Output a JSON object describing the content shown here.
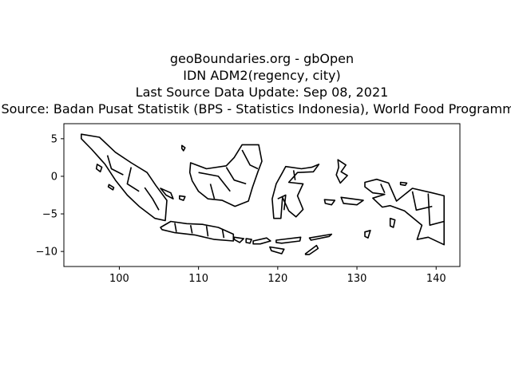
{
  "figure": {
    "title_lines": [
      "geoBoundaries.org - gbOpen",
      "IDN ADM2(regency, city)",
      "Last Source Data Update: Sep 08, 2021",
      "Source: Badan Pusat Statistik (BPS - Statistics Indonesia), World Food Programme"
    ]
  },
  "map_data": {
    "type": "boundary-map",
    "country": "IDN",
    "admin_level": "ADM2(regency, city)",
    "line_color": "#000000",
    "background": "#ffffff",
    "x_range": [
      93,
      143
    ],
    "y_range": [
      -12,
      7
    ],
    "x_ticks": [
      100,
      110,
      120,
      130,
      140
    ],
    "x_tick_labels": [
      "100",
      "110",
      "120",
      "130",
      "140"
    ],
    "y_ticks": [
      5,
      0,
      -5,
      -10
    ],
    "y_tick_labels": [
      "5",
      "0",
      "−5",
      "−10"
    ],
    "islands": [
      {
        "name": "Sumatra",
        "coords": [
          [
            95.2,
            5.6
          ],
          [
            97.5,
            5.2
          ],
          [
            99.5,
            3.2
          ],
          [
            101.5,
            1.8
          ],
          [
            103.5,
            0.5
          ],
          [
            104.6,
            -1.2
          ],
          [
            106.0,
            -3.2
          ],
          [
            105.8,
            -5.9
          ],
          [
            104.5,
            -5.6
          ],
          [
            102.5,
            -4.0
          ],
          [
            101.0,
            -2.5
          ],
          [
            99.5,
            -0.5
          ],
          [
            98.2,
            1.6
          ],
          [
            96.5,
            3.6
          ],
          [
            95.2,
            5.0
          ]
        ]
      },
      {
        "name": "Java",
        "coords": [
          [
            105.2,
            -6.8
          ],
          [
            106.5,
            -6.0
          ],
          [
            108.5,
            -6.3
          ],
          [
            110.5,
            -6.4
          ],
          [
            112.5,
            -6.8
          ],
          [
            114.4,
            -7.7
          ],
          [
            114.4,
            -8.6
          ],
          [
            112.0,
            -8.4
          ],
          [
            109.5,
            -7.8
          ],
          [
            107.0,
            -7.5
          ],
          [
            105.4,
            -7.1
          ]
        ]
      },
      {
        "name": "Bali",
        "coords": [
          [
            114.5,
            -8.1
          ],
          [
            115.7,
            -8.3
          ],
          [
            115.2,
            -8.8
          ],
          [
            114.5,
            -8.4
          ]
        ]
      },
      {
        "name": "Lombok",
        "coords": [
          [
            116.0,
            -8.3
          ],
          [
            116.7,
            -8.4
          ],
          [
            116.5,
            -8.9
          ],
          [
            116.0,
            -8.8
          ]
        ]
      },
      {
        "name": "Sumbawa",
        "coords": [
          [
            116.9,
            -8.6
          ],
          [
            118.6,
            -8.2
          ],
          [
            119.1,
            -8.6
          ],
          [
            117.8,
            -9.0
          ],
          [
            116.9,
            -9.0
          ]
        ]
      },
      {
        "name": "Flores",
        "coords": [
          [
            119.8,
            -8.5
          ],
          [
            122.9,
            -8.1
          ],
          [
            122.8,
            -8.6
          ],
          [
            120.5,
            -8.9
          ],
          [
            119.8,
            -8.8
          ]
        ]
      },
      {
        "name": "Sumba",
        "coords": [
          [
            119.0,
            -9.4
          ],
          [
            120.8,
            -9.7
          ],
          [
            120.5,
            -10.3
          ],
          [
            119.2,
            -9.9
          ]
        ]
      },
      {
        "name": "Timor",
        "coords": [
          [
            123.5,
            -10.3
          ],
          [
            124.9,
            -9.2
          ],
          [
            125.1,
            -9.6
          ],
          [
            124.0,
            -10.4
          ],
          [
            123.5,
            -10.4
          ]
        ]
      },
      {
        "name": "Kalimantan",
        "coords": [
          [
            109.0,
            1.8
          ],
          [
            111.0,
            1.0
          ],
          [
            113.5,
            1.4
          ],
          [
            114.5,
            2.5
          ],
          [
            115.5,
            4.2
          ],
          [
            117.6,
            4.2
          ],
          [
            118.0,
            2.0
          ],
          [
            117.5,
            0.6
          ],
          [
            116.8,
            -1.5
          ],
          [
            116.3,
            -3.3
          ],
          [
            114.6,
            -4.0
          ],
          [
            113.0,
            -3.2
          ],
          [
            111.2,
            -3.0
          ],
          [
            110.0,
            -2.0
          ],
          [
            109.2,
            -0.6
          ],
          [
            108.9,
            0.5
          ]
        ]
      },
      {
        "name": "Sulawesi",
        "coords": [
          [
            119.5,
            -5.6
          ],
          [
            119.3,
            -3.0
          ],
          [
            119.8,
            -1.0
          ],
          [
            120.6,
            0.5
          ],
          [
            121.0,
            1.3
          ],
          [
            123.0,
            1.0
          ],
          [
            124.3,
            1.2
          ],
          [
            125.2,
            1.6
          ],
          [
            124.5,
            0.6
          ],
          [
            122.5,
            0.5
          ],
          [
            121.4,
            -0.8
          ],
          [
            123.2,
            -1.0
          ],
          [
            122.5,
            -2.6
          ],
          [
            123.2,
            -4.4
          ],
          [
            122.3,
            -5.4
          ],
          [
            121.4,
            -4.6
          ],
          [
            120.6,
            -2.8
          ],
          [
            120.4,
            -5.6
          ]
        ]
      },
      {
        "name": "Halmahera",
        "coords": [
          [
            127.6,
            2.2
          ],
          [
            128.6,
            1.5
          ],
          [
            128.0,
            0.6
          ],
          [
            128.8,
            0.1
          ],
          [
            127.9,
            -0.9
          ],
          [
            127.4,
            0.2
          ],
          [
            127.7,
            1.2
          ]
        ]
      },
      {
        "name": "Seram",
        "coords": [
          [
            128.0,
            -2.8
          ],
          [
            130.8,
            -3.2
          ],
          [
            130.0,
            -3.8
          ],
          [
            128.3,
            -3.6
          ]
        ]
      },
      {
        "name": "Buru",
        "coords": [
          [
            125.9,
            -3.1
          ],
          [
            127.2,
            -3.2
          ],
          [
            126.8,
            -3.8
          ],
          [
            126.0,
            -3.6
          ]
        ]
      },
      {
        "name": "Papua",
        "coords": [
          [
            131.0,
            -0.8
          ],
          [
            132.5,
            -0.4
          ],
          [
            134.0,
            -0.9
          ],
          [
            135.0,
            -3.3
          ],
          [
            137.0,
            -1.6
          ],
          [
            139.5,
            -2.2
          ],
          [
            141.0,
            -2.6
          ],
          [
            141.0,
            -9.1
          ],
          [
            139.0,
            -8.1
          ],
          [
            137.6,
            -8.4
          ],
          [
            138.2,
            -6.5
          ],
          [
            136.0,
            -4.6
          ],
          [
            134.2,
            -3.9
          ],
          [
            133.2,
            -4.1
          ],
          [
            132.0,
            -2.9
          ],
          [
            133.5,
            -2.4
          ],
          [
            132.0,
            -2.2
          ],
          [
            131.0,
            -1.4
          ]
        ]
      },
      {
        "name": "Bangka",
        "coords": [
          [
            105.2,
            -1.6
          ],
          [
            106.5,
            -2.2
          ],
          [
            106.8,
            -3.0
          ],
          [
            105.9,
            -2.5
          ]
        ]
      },
      {
        "name": "Belitung",
        "coords": [
          [
            107.6,
            -2.6
          ],
          [
            108.3,
            -2.7
          ],
          [
            108.1,
            -3.2
          ],
          [
            107.6,
            -3.0
          ]
        ]
      },
      {
        "name": "Aru",
        "coords": [
          [
            134.2,
            -5.6
          ],
          [
            134.8,
            -5.8
          ],
          [
            134.6,
            -6.8
          ],
          [
            134.2,
            -6.6
          ]
        ]
      },
      {
        "name": "Yamdena",
        "coords": [
          [
            131.0,
            -7.4
          ],
          [
            131.7,
            -7.2
          ],
          [
            131.4,
            -8.2
          ],
          [
            131.0,
            -8.0
          ]
        ]
      },
      {
        "name": "Wetar-Alor",
        "coords": [
          [
            124.0,
            -8.2
          ],
          [
            126.8,
            -7.7
          ],
          [
            126.5,
            -8.0
          ],
          [
            124.2,
            -8.5
          ]
        ]
      },
      {
        "name": "Nias",
        "coords": [
          [
            97.2,
            1.6
          ],
          [
            97.8,
            1.2
          ],
          [
            97.6,
            0.6
          ],
          [
            97.1,
            1.0
          ]
        ]
      },
      {
        "name": "Siberut",
        "coords": [
          [
            98.7,
            -1.1
          ],
          [
            99.3,
            -1.5
          ],
          [
            99.2,
            -1.8
          ],
          [
            98.6,
            -1.4
          ]
        ]
      },
      {
        "name": "Natuna",
        "coords": [
          [
            107.9,
            4.1
          ],
          [
            108.3,
            3.8
          ],
          [
            108.1,
            3.4
          ],
          [
            107.9,
            3.7
          ]
        ]
      },
      {
        "name": "Biak",
        "coords": [
          [
            135.5,
            -0.8
          ],
          [
            136.3,
            -0.9
          ],
          [
            136.1,
            -1.2
          ],
          [
            135.5,
            -1.1
          ]
        ]
      }
    ],
    "internal_lines": [
      [
        [
          98.5,
          2.8
        ],
        [
          99.0,
          1.0
        ],
        [
          100.5,
          0.2
        ]
      ],
      [
        [
          101.5,
          1.2
        ],
        [
          101.0,
          -1.0
        ],
        [
          102.5,
          -2.0
        ]
      ],
      [
        [
          103.2,
          -1.5
        ],
        [
          104.2,
          -3.0
        ],
        [
          105.0,
          -4.5
        ]
      ],
      [
        [
          107.0,
          -6.2
        ],
        [
          107.2,
          -7.4
        ]
      ],
      [
        [
          109.0,
          -6.5
        ],
        [
          109.2,
          -7.6
        ]
      ],
      [
        [
          111.0,
          -6.6
        ],
        [
          111.2,
          -8.0
        ]
      ],
      [
        [
          113.0,
          -7.0
        ],
        [
          113.2,
          -8.2
        ]
      ],
      [
        [
          110.0,
          0.5
        ],
        [
          112.5,
          0.0
        ],
        [
          114.0,
          -2.0
        ]
      ],
      [
        [
          113.5,
          1.2
        ],
        [
          114.5,
          -0.5
        ],
        [
          116.0,
          -1.0
        ]
      ],
      [
        [
          115.5,
          3.5
        ],
        [
          116.5,
          1.5
        ],
        [
          117.5,
          1.0
        ]
      ],
      [
        [
          111.5,
          -1.0
        ],
        [
          112.0,
          -3.0
        ]
      ],
      [
        [
          120.0,
          -3.0
        ],
        [
          121.0,
          -2.5
        ],
        [
          120.8,
          -4.5
        ]
      ],
      [
        [
          122.0,
          0.8
        ],
        [
          122.2,
          -0.5
        ]
      ],
      [
        [
          137.0,
          -2.0
        ],
        [
          137.5,
          -4.5
        ],
        [
          139.5,
          -4.0
        ]
      ],
      [
        [
          139.0,
          -2.3
        ],
        [
          139.2,
          -6.5
        ],
        [
          141.0,
          -6.0
        ]
      ],
      [
        [
          133.0,
          -1.0
        ],
        [
          133.5,
          -2.2
        ]
      ]
    ]
  }
}
